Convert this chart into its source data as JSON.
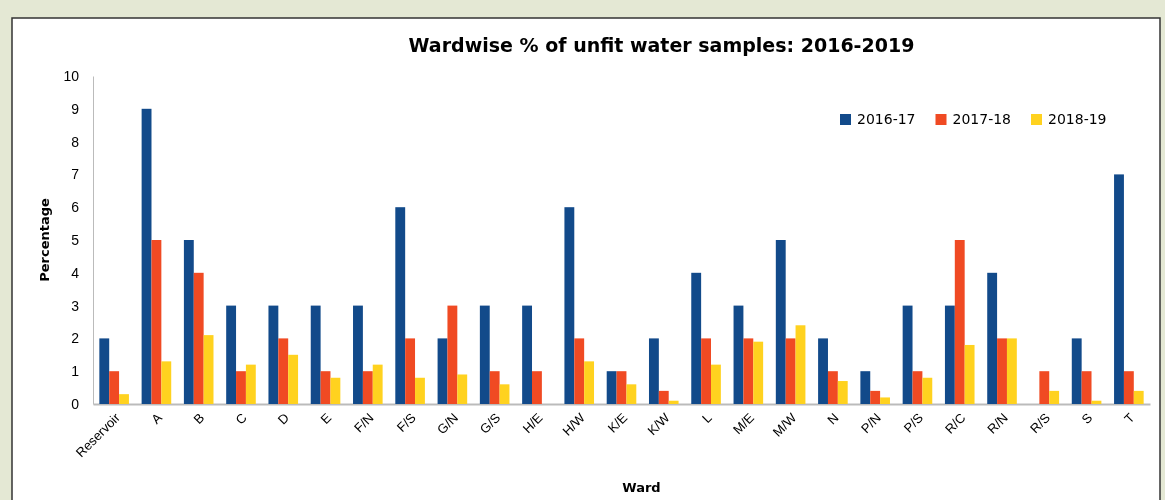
{
  "chart_data": {
    "type": "bar",
    "title": "Wardwise % of unfit water samples: 2016-2019",
    "xlabel": "Ward",
    "ylabel": "Percentage",
    "categories": [
      "Reservoir",
      "A",
      "B",
      "C",
      "D",
      "E",
      "F/N",
      "F/S",
      "G/N",
      "G/S",
      "H/E",
      "H/W",
      "K/E",
      "K/W",
      "L",
      "M/E",
      "M/W",
      "N",
      "P/N",
      "P/S",
      "R/C",
      "R/N",
      "R/S",
      "S",
      "T"
    ],
    "series": [
      {
        "name": "2016-17",
        "color": "#124a8a",
        "values": [
          2,
          9,
          5,
          3,
          3,
          3,
          3,
          6,
          2,
          3,
          3,
          6,
          1,
          2,
          4,
          3,
          5,
          2,
          1,
          3,
          3,
          4,
          0,
          2,
          7
        ]
      },
      {
        "name": "2017-18",
        "color": "#f04a23",
        "values": [
          1,
          5,
          4,
          1,
          2,
          1,
          1,
          2,
          3,
          1,
          1,
          2,
          1,
          0.4,
          2,
          2,
          2,
          1,
          0.4,
          1,
          5,
          2,
          1,
          1,
          1
        ]
      },
      {
        "name": "2018-19",
        "color": "#ffd21f",
        "values": [
          0.3,
          1.3,
          2.1,
          1.2,
          1.5,
          0.8,
          1.2,
          0.8,
          0.9,
          0.6,
          0,
          1.3,
          0.6,
          0.1,
          1.2,
          1.9,
          2.4,
          0.7,
          0.2,
          0.8,
          1.8,
          2.0,
          0.4,
          0.1,
          0.4
        ]
      }
    ],
    "ylim": [
      0,
      10
    ],
    "yticks": [
      0,
      1,
      2,
      3,
      4,
      5,
      6,
      7,
      8,
      9,
      10
    ],
    "grid": false,
    "legend": "top right"
  }
}
